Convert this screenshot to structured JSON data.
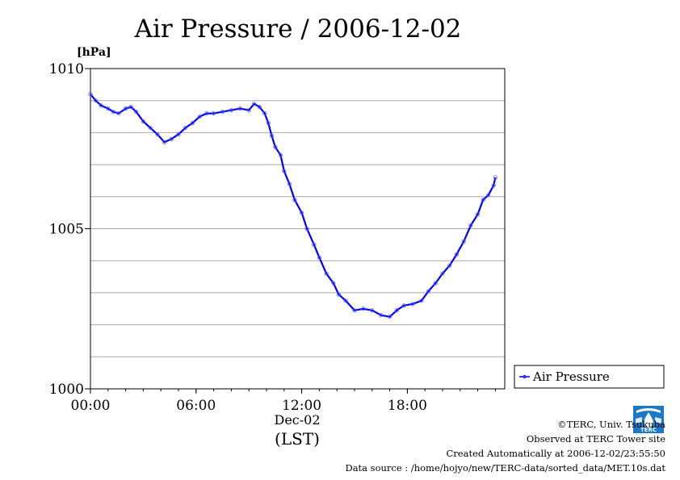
{
  "chart_data": {
    "type": "line",
    "title": "Air Pressure / 2006-12-02",
    "ylabel": "[hPa]",
    "xlabel_date": "Dec-02",
    "xlabel": "(LST)",
    "ylim": [
      1000,
      1010
    ],
    "xlim": [
      0,
      23
    ],
    "y_ticks_labeled": [
      {
        "value": 1000,
        "label": "1000"
      },
      {
        "value": 1005,
        "label": "1005"
      },
      {
        "value": 1010,
        "label": "1010"
      }
    ],
    "y_gridlines": [
      1001,
      1002,
      1003,
      1004,
      1005,
      1006,
      1007,
      1008,
      1009
    ],
    "x_ticks": [
      {
        "value": 0,
        "label": "00:00"
      },
      {
        "value": 6,
        "label": "06:00"
      },
      {
        "value": 12,
        "label": "12:00"
      },
      {
        "value": 18,
        "label": "18:00"
      }
    ],
    "grid": "horizontal",
    "legend_position": "right",
    "series": [
      {
        "name": "Air Pressure",
        "color": "#0000ff",
        "points": [
          [
            0,
            1009.2
          ],
          [
            0.3,
            1009.0
          ],
          [
            0.6,
            1008.85
          ],
          [
            1.0,
            1008.75
          ],
          [
            1.3,
            1008.65
          ],
          [
            1.6,
            1008.6
          ],
          [
            2.0,
            1008.75
          ],
          [
            2.3,
            1008.8
          ],
          [
            2.6,
            1008.65
          ],
          [
            3.0,
            1008.35
          ],
          [
            3.4,
            1008.15
          ],
          [
            3.8,
            1007.95
          ],
          [
            4.2,
            1007.7
          ],
          [
            4.6,
            1007.8
          ],
          [
            5.0,
            1007.95
          ],
          [
            5.4,
            1008.15
          ],
          [
            5.8,
            1008.3
          ],
          [
            6.2,
            1008.5
          ],
          [
            6.6,
            1008.6
          ],
          [
            7.0,
            1008.6
          ],
          [
            7.5,
            1008.65
          ],
          [
            8.0,
            1008.7
          ],
          [
            8.5,
            1008.75
          ],
          [
            9.0,
            1008.7
          ],
          [
            9.3,
            1008.9
          ],
          [
            9.6,
            1008.8
          ],
          [
            9.9,
            1008.6
          ],
          [
            10.1,
            1008.3
          ],
          [
            10.3,
            1007.9
          ],
          [
            10.5,
            1007.55
          ],
          [
            10.8,
            1007.3
          ],
          [
            11.0,
            1006.8
          ],
          [
            11.3,
            1006.4
          ],
          [
            11.6,
            1005.9
          ],
          [
            12.0,
            1005.5
          ],
          [
            12.3,
            1005.0
          ],
          [
            12.7,
            1004.5
          ],
          [
            13.0,
            1004.1
          ],
          [
            13.4,
            1003.6
          ],
          [
            13.8,
            1003.3
          ],
          [
            14.1,
            1002.95
          ],
          [
            14.5,
            1002.75
          ],
          [
            15.0,
            1002.45
          ],
          [
            15.5,
            1002.5
          ],
          [
            16.0,
            1002.45
          ],
          [
            16.5,
            1002.3
          ],
          [
            17.0,
            1002.25
          ],
          [
            17.4,
            1002.45
          ],
          [
            17.8,
            1002.6
          ],
          [
            18.3,
            1002.65
          ],
          [
            18.8,
            1002.75
          ],
          [
            19.2,
            1003.05
          ],
          [
            19.6,
            1003.3
          ],
          [
            20.0,
            1003.6
          ],
          [
            20.4,
            1003.85
          ],
          [
            20.8,
            1004.2
          ],
          [
            21.2,
            1004.6
          ],
          [
            21.6,
            1005.1
          ],
          [
            22.0,
            1005.45
          ],
          [
            22.3,
            1005.9
          ],
          [
            22.6,
            1006.05
          ],
          [
            22.9,
            1006.35
          ],
          [
            23.0,
            1006.6
          ]
        ]
      }
    ]
  },
  "footer": {
    "copyright": "©TERC, Univ. Tsukuba",
    "observed": "Observed at TERC Tower site",
    "created": "Created Automatically at 2006-12-02/23:55:50",
    "source": "Data source : /home/hojyo/new/TERC-data/sorted_data/MET.10s.dat",
    "logo_text": "TERC"
  }
}
